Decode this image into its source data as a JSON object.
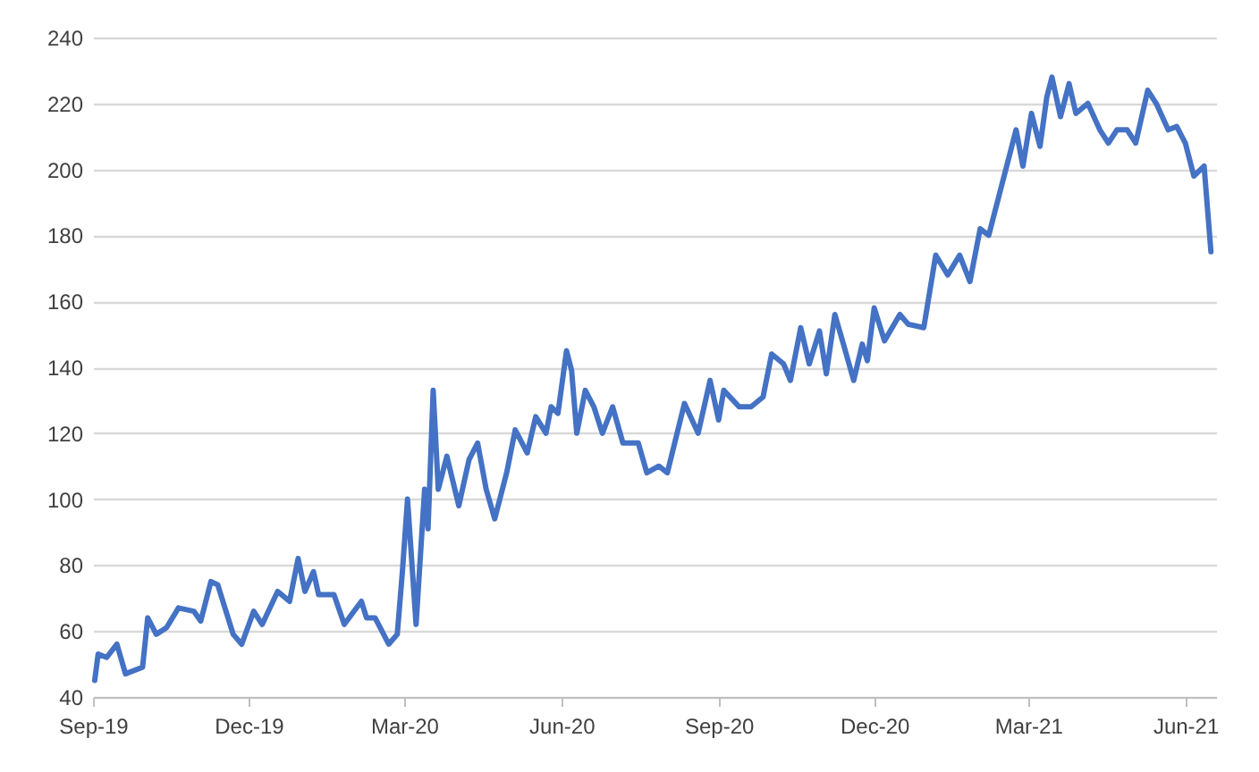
{
  "chart_data": {
    "type": "line",
    "x": [
      "2019-09-02",
      "2019-09-04",
      "2019-09-09",
      "2019-09-15",
      "2019-09-20",
      "2019-09-30",
      "2019-10-03",
      "2019-10-08",
      "2019-10-14",
      "2019-10-21",
      "2019-10-30",
      "2019-11-03",
      "2019-11-09",
      "2019-11-13",
      "2019-11-22",
      "2019-11-27",
      "2019-12-04",
      "2019-12-09",
      "2019-12-18",
      "2019-12-25",
      "2019-12-30",
      "2020-01-03",
      "2020-01-08",
      "2020-01-11",
      "2020-01-20",
      "2020-01-26",
      "2020-02-05",
      "2020-02-08",
      "2020-02-13",
      "2020-02-21",
      "2020-02-26",
      "2020-02-29",
      "2020-03-03",
      "2020-03-08",
      "2020-03-13",
      "2020-03-15",
      "2020-03-18",
      "2020-03-21",
      "2020-03-26",
      "2020-04-02",
      "2020-04-08",
      "2020-04-13",
      "2020-04-18",
      "2020-04-23",
      "2020-04-30",
      "2020-05-05",
      "2020-05-12",
      "2020-05-17",
      "2020-05-23",
      "2020-05-26",
      "2020-05-30",
      "2020-06-04",
      "2020-06-07",
      "2020-06-10",
      "2020-06-15",
      "2020-06-20",
      "2020-06-25",
      "2020-07-01",
      "2020-07-07",
      "2020-07-16",
      "2020-07-21",
      "2020-07-28",
      "2020-08-02",
      "2020-08-12",
      "2020-08-20",
      "2020-08-27",
      "2020-09-01",
      "2020-09-04",
      "2020-09-13",
      "2020-09-20",
      "2020-09-27",
      "2020-10-02",
      "2020-10-09",
      "2020-10-13",
      "2020-10-19",
      "2020-10-24",
      "2020-10-30",
      "2020-11-03",
      "2020-11-08",
      "2020-11-13",
      "2020-11-19",
      "2020-11-24",
      "2020-11-27",
      "2020-12-01",
      "2020-12-07",
      "2020-12-16",
      "2020-12-21",
      "2020-12-30",
      "2021-01-06",
      "2021-01-13",
      "2021-01-20",
      "2021-01-26",
      "2021-02-01",
      "2021-02-06",
      "2021-02-11",
      "2021-02-17",
      "2021-02-22",
      "2021-02-26",
      "2021-03-03",
      "2021-03-08",
      "2021-03-12",
      "2021-03-15",
      "2021-03-20",
      "2021-03-25",
      "2021-03-29",
      "2021-04-05",
      "2021-04-12",
      "2021-04-17",
      "2021-04-22",
      "2021-04-28",
      "2021-05-03",
      "2021-05-10",
      "2021-05-15",
      "2021-05-22",
      "2021-05-27",
      "2021-06-01",
      "2021-06-06",
      "2021-06-12",
      "2021-06-16"
    ],
    "series": [
      {
        "color": "#4472c4",
        "values": [
          45,
          53,
          52,
          56,
          47,
          49,
          64,
          59,
          61,
          67,
          66,
          63,
          75,
          74,
          59,
          56,
          66,
          62,
          72,
          69,
          82,
          72,
          78,
          71,
          71,
          62,
          69,
          64,
          64,
          56,
          59,
          78,
          100,
          62,
          103,
          91,
          133,
          103,
          113,
          98,
          112,
          117,
          103,
          94,
          108,
          121,
          114,
          125,
          120,
          128,
          126,
          145,
          139,
          120,
          133,
          128,
          120,
          128,
          117,
          117,
          108,
          110,
          108,
          129,
          120,
          136,
          124,
          133,
          128,
          128,
          131,
          144,
          141,
          136,
          152,
          141,
          151,
          138,
          156,
          147,
          136,
          147,
          142,
          158,
          148,
          156,
          153,
          152,
          174,
          168,
          174,
          166,
          182,
          180,
          190,
          202,
          212,
          201,
          217,
          207,
          222,
          228,
          216,
          226,
          217,
          220,
          212,
          208,
          212,
          212,
          208,
          224,
          220,
          212,
          213,
          208,
          198,
          201,
          175
        ]
      }
    ],
    "xlim": [
      "2019-09-01",
      "2021-06-19"
    ],
    "xticks": [
      {
        "value": "2019-09-01",
        "label": "Sep-19"
      },
      {
        "value": "2019-12-01",
        "label": "Dec-19"
      },
      {
        "value": "2020-03-01",
        "label": "Mar-20"
      },
      {
        "value": "2020-06-01",
        "label": "Jun-20"
      },
      {
        "value": "2020-09-01",
        "label": "Sep-20"
      },
      {
        "value": "2020-12-01",
        "label": "Dec-20"
      },
      {
        "value": "2021-03-01",
        "label": "Mar-21"
      },
      {
        "value": "2021-06-01",
        "label": "Jun-21"
      }
    ],
    "ylim": [
      40,
      240
    ],
    "yticks": [
      40,
      60,
      80,
      100,
      120,
      140,
      160,
      180,
      200,
      220,
      240
    ],
    "grid": "y",
    "marker": "none",
    "line_style": "solid"
  }
}
